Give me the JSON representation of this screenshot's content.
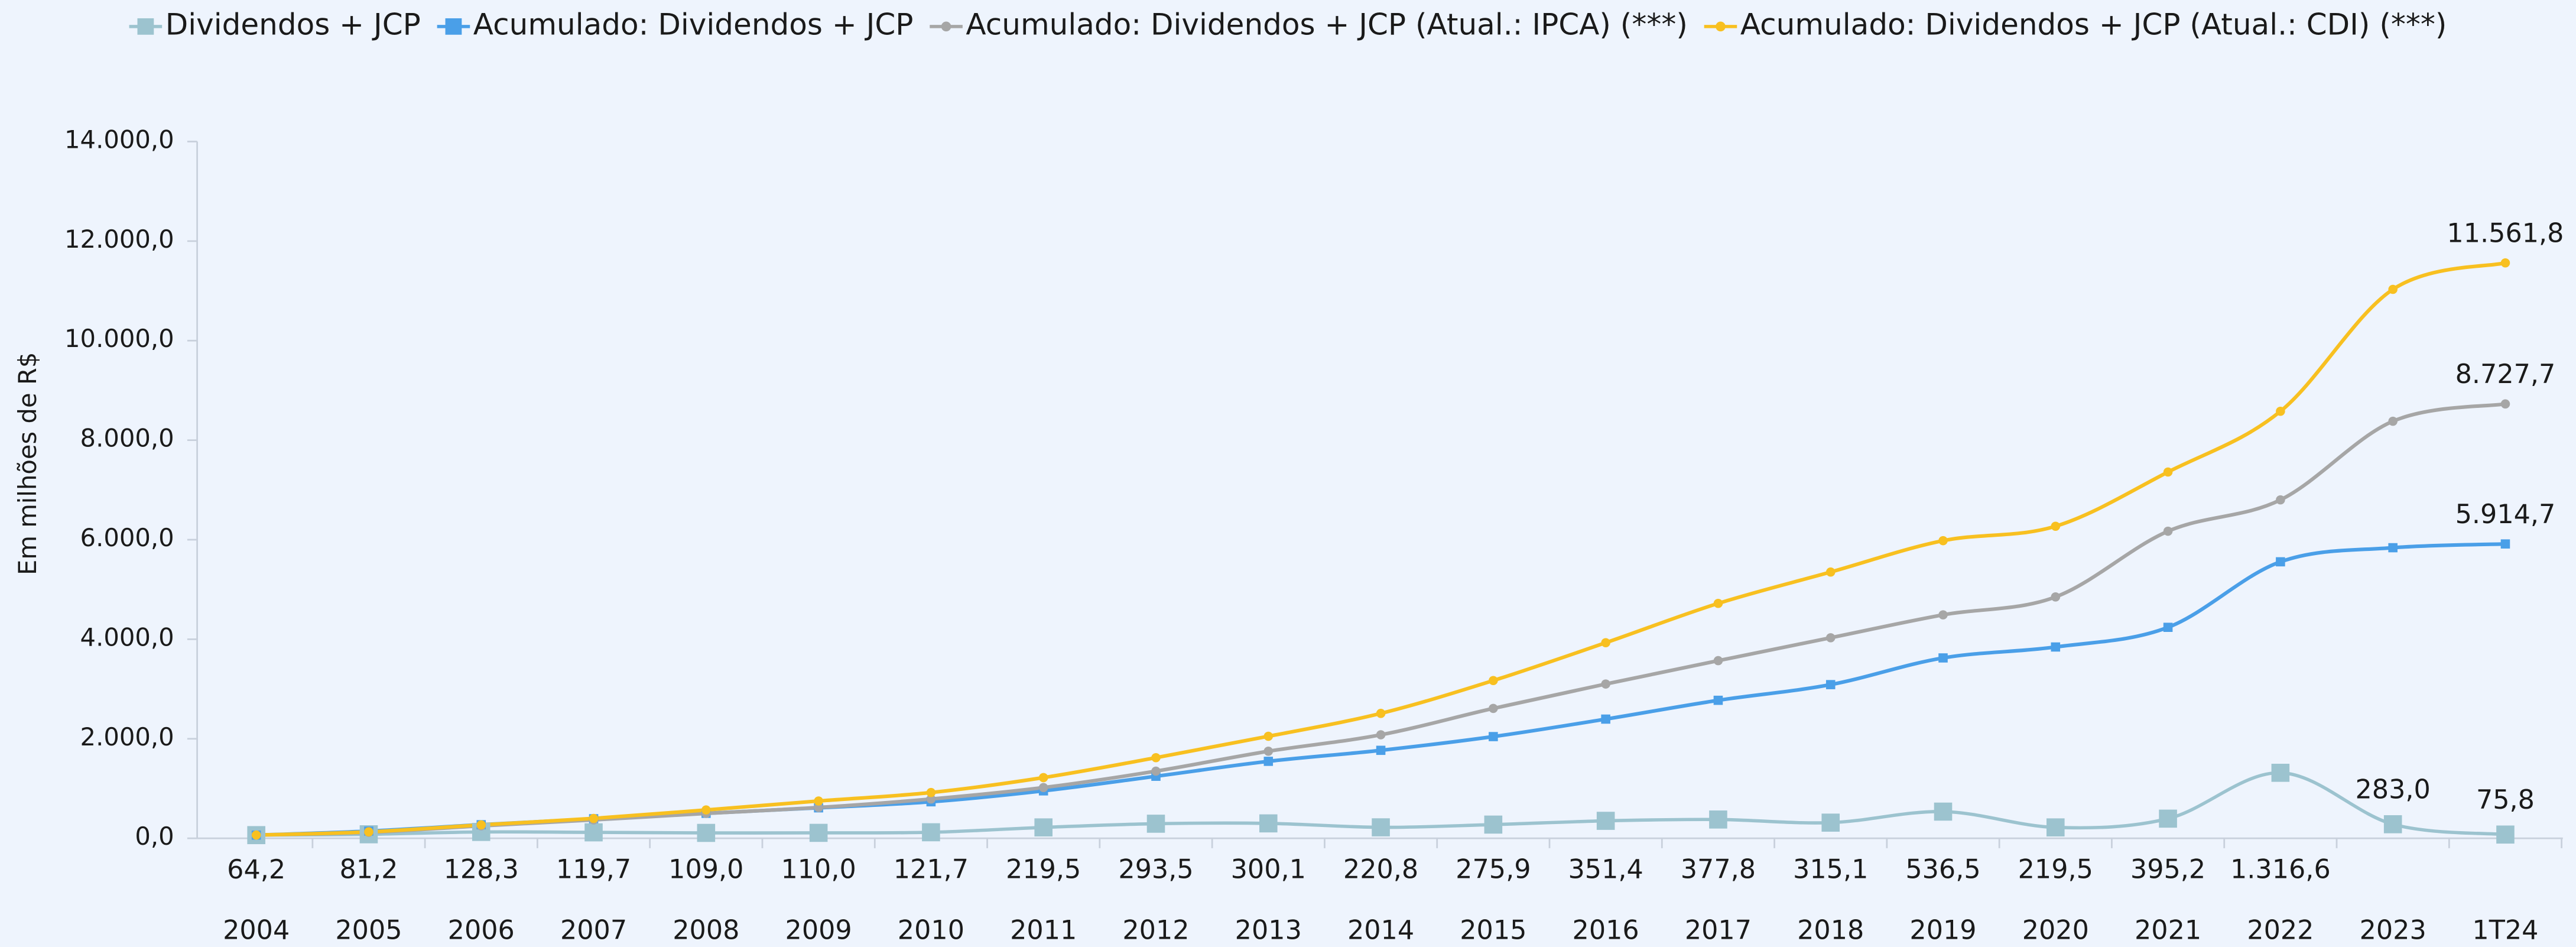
{
  "chart_data": {
    "type": "line",
    "y_label": "Em milhões de R$",
    "categories": [
      "2004",
      "2005",
      "2006",
      "2007",
      "2008",
      "2009",
      "2010",
      "2011",
      "2012",
      "2013",
      "2014",
      "2015",
      "2016",
      "2017",
      "2018",
      "2019",
      "2020",
      "2021",
      "2022",
      "2023",
      "1T24"
    ],
    "ylim": [
      0,
      14000
    ],
    "yticks": [
      {
        "value": 0,
        "label": "0,0"
      },
      {
        "value": 2000,
        "label": "2.000,0"
      },
      {
        "value": 4000,
        "label": "4.000,0"
      },
      {
        "value": 6000,
        "label": "6.000,0"
      },
      {
        "value": 8000,
        "label": "8.000,0"
      },
      {
        "value": 10000,
        "label": "10.000,0"
      },
      {
        "value": 12000,
        "label": "12.000,0"
      },
      {
        "value": 14000,
        "label": "14.000,0"
      }
    ],
    "legend": "top",
    "series": [
      {
        "name": "Dividendos + JCP",
        "color": "#9cc3cf",
        "marker": "square",
        "values": [
          64.2,
          81.2,
          128.3,
          119.7,
          109.0,
          110.0,
          121.7,
          219.5,
          293.5,
          300.1,
          220.8,
          275.9,
          351.4,
          377.8,
          315.1,
          536.5,
          219.5,
          395.2,
          1316.6,
          283.0,
          75.8
        ],
        "value_labels": [
          "64,2",
          "81,2",
          "128,3",
          "119,7",
          "109,0",
          "110,0",
          "121,7",
          "219,5",
          "293,5",
          "300,1",
          "220,8",
          "275,9",
          "351,4",
          "377,8",
          "315,1",
          "536,5",
          "219,5",
          "395,2",
          "1.316,6",
          "283,0",
          "75,8"
        ]
      },
      {
        "name": "Acumulado: Dividendos + JCP",
        "color": "#4a9fe8",
        "marker": "square",
        "values": [
          64.2,
          145.4,
          273.7,
          393.4,
          502.4,
          612.4,
          734.1,
          953.6,
          1247.1,
          1547.2,
          1768.0,
          2043.9,
          2395.3,
          2773.1,
          3088.2,
          3624.7,
          3844.2,
          4239.4,
          5556.0,
          5839.0,
          5914.7
        ],
        "value_labels": [
          null,
          null,
          null,
          null,
          null,
          null,
          null,
          null,
          null,
          null,
          null,
          null,
          null,
          null,
          null,
          null,
          null,
          null,
          null,
          null,
          "5.914,7"
        ]
      },
      {
        "name": "Acumulado: Dividendos + JCP (Atual.: IPCA) (***)",
        "color": "#a6a6a6",
        "marker": "circle",
        "values": [
          65,
          120,
          250,
          370,
          500,
          620,
          790,
          1020,
          1350,
          1750,
          2080,
          2610,
          3100,
          3570,
          4030,
          4490,
          4850,
          6170,
          6800,
          8380,
          8727.7
        ],
        "value_labels": [
          null,
          null,
          null,
          null,
          null,
          null,
          null,
          null,
          null,
          null,
          null,
          null,
          null,
          null,
          null,
          null,
          null,
          null,
          null,
          null,
          "8.727,7"
        ]
      },
      {
        "name": "Acumulado: Dividendos + JCP (Atual.: CDI) (***)",
        "color": "#f8c020",
        "marker": "circle",
        "values": [
          65,
          130,
          270,
          400,
          570,
          750,
          920,
          1220,
          1620,
          2050,
          2510,
          3170,
          3930,
          4720,
          5350,
          5980,
          6270,
          7360,
          8580,
          11030,
          11561.8
        ],
        "value_labels": [
          null,
          null,
          null,
          null,
          null,
          null,
          null,
          null,
          null,
          null,
          null,
          null,
          null,
          null,
          null,
          null,
          null,
          null,
          null,
          null,
          "11.561,8"
        ]
      }
    ]
  }
}
